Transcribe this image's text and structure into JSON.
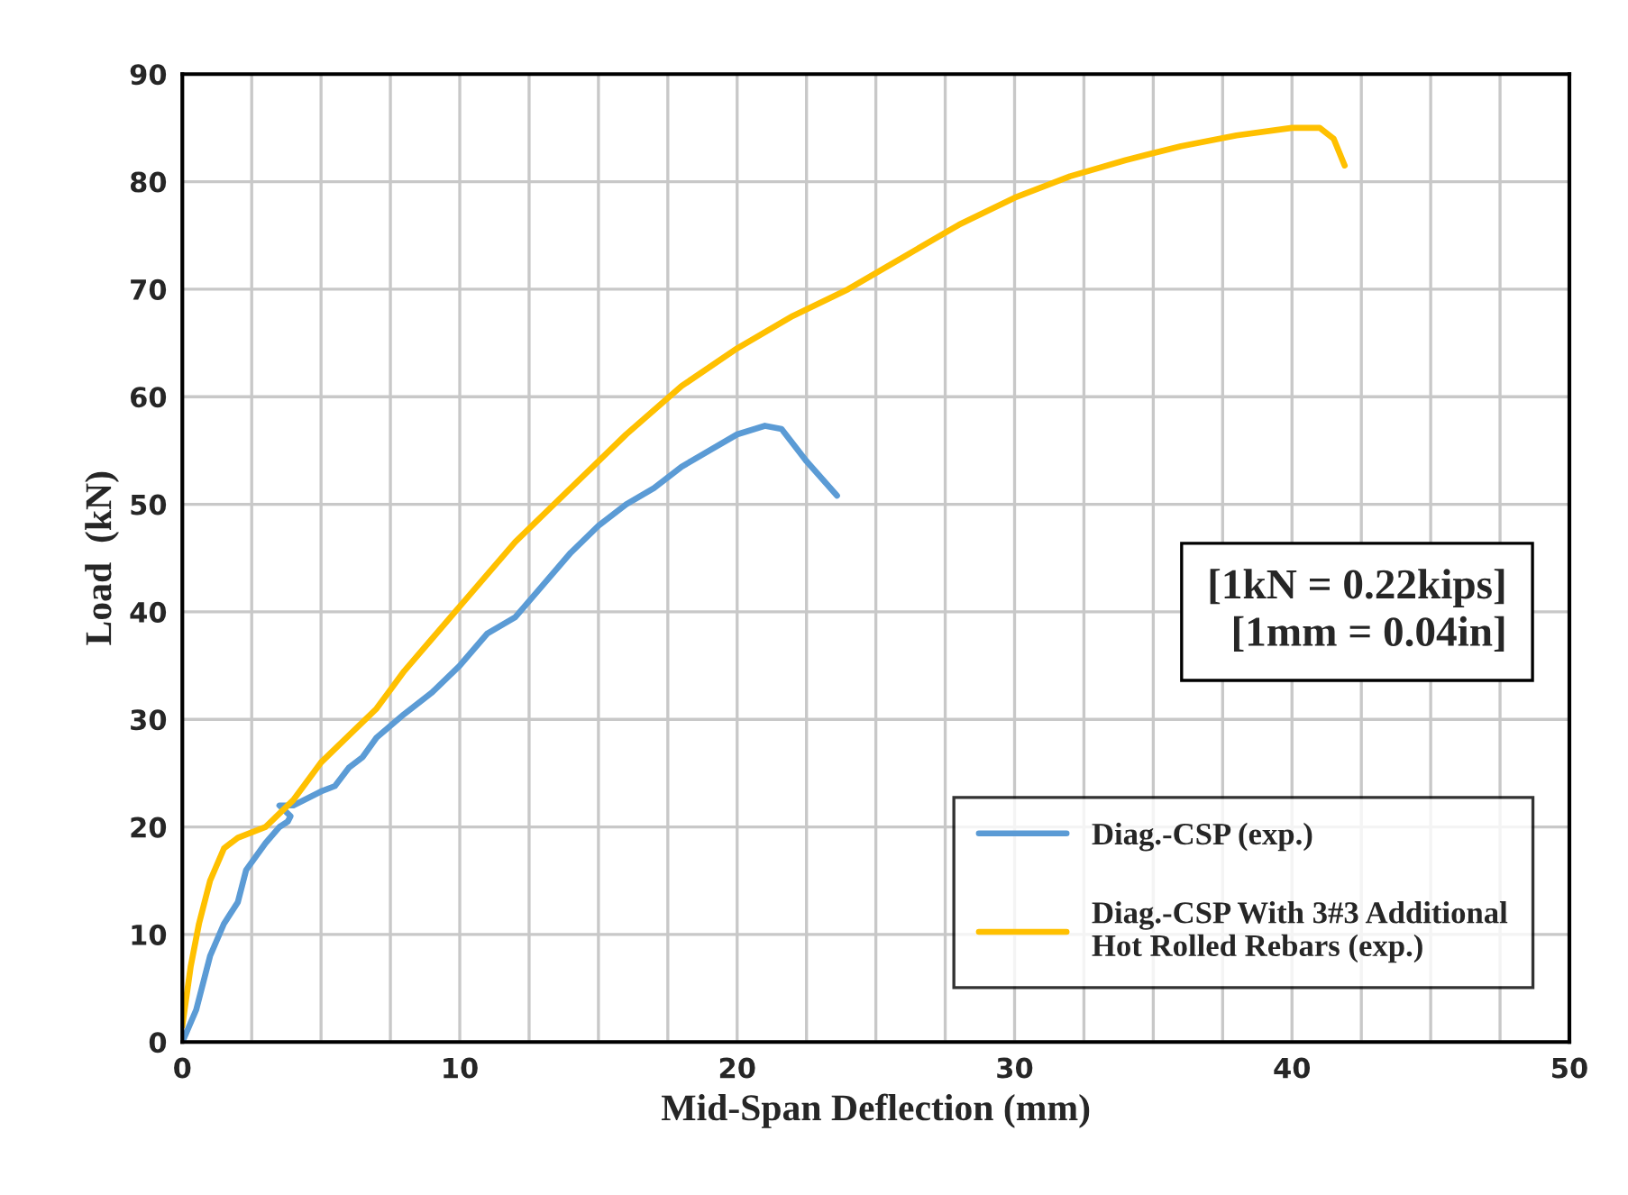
{
  "chart_data": {
    "type": "line",
    "xlabel": "Mid-Span Deflection (mm)",
    "ylabel": "Load  (kN)",
    "xlim": [
      0,
      50
    ],
    "ylim": [
      0,
      90
    ],
    "xticks": [
      0,
      {
        "value": 2.5,
        "label": null
      },
      {
        "value": 5,
        "label": null
      },
      {
        "value": 7.5,
        "label": null
      },
      10,
      {
        "value": 12.5,
        "label": null
      },
      {
        "value": 15,
        "label": null
      },
      {
        "value": 17.5,
        "label": null
      },
      20,
      {
        "value": 22.5,
        "label": null
      },
      {
        "value": 25,
        "label": null
      },
      {
        "value": 27.5,
        "label": null
      },
      30,
      {
        "value": 32.5,
        "label": null
      },
      {
        "value": 35,
        "label": null
      },
      {
        "value": 37.5,
        "label": null
      },
      40,
      {
        "value": 42.5,
        "label": null
      },
      {
        "value": 45,
        "label": null
      },
      {
        "value": 47.5,
        "label": null
      },
      50
    ],
    "yticks": [
      0,
      10,
      20,
      30,
      40,
      50,
      60,
      70,
      80,
      90
    ],
    "grid": true,
    "legend": "bottom right",
    "marker": "none",
    "line_style": "solid",
    "annotations": [
      "[1kN = 0.22kips]\n[1mm = 0.04in]"
    ],
    "series": [
      {
        "name": "Diag.-CSP (exp.)",
        "color": "#5b9bd5",
        "x": [
          0,
          0.5,
          1,
          1.5,
          2,
          2.3,
          3,
          3.5,
          3.8,
          3.9,
          3.5,
          4,
          5,
          5.5,
          6,
          6.5,
          7,
          8,
          9,
          10,
          11,
          12,
          13,
          14,
          15,
          16,
          17,
          18,
          19,
          20,
          21,
          21.6,
          22.5,
          23.6
        ],
        "values": [
          0,
          3,
          8,
          11,
          13,
          16,
          18.5,
          20,
          20.5,
          21,
          22,
          22,
          23.3,
          23.8,
          25.5,
          26.5,
          28.3,
          30.5,
          32.5,
          35,
          38,
          39.5,
          42.5,
          45.5,
          48,
          50,
          51.5,
          53.5,
          55,
          56.5,
          57.3,
          57,
          54,
          50.8
        ]
      },
      {
        "name": "Diag.-CSP With 3#3 Additional\nHot Rolled Rebars (exp.)",
        "color": "#ffc000",
        "x": [
          0,
          0.3,
          0.6,
          1,
          1.5,
          2,
          3,
          4,
          5,
          6,
          7,
          8,
          9,
          10,
          11,
          12,
          14,
          16,
          18,
          20,
          22,
          24,
          26,
          28,
          30,
          32,
          34,
          36,
          38,
          40,
          41,
          41.5,
          41.9
        ],
        "values": [
          1.5,
          7,
          11,
          15,
          18,
          19,
          20,
          22.5,
          26,
          28.5,
          31,
          34.5,
          37.5,
          40.5,
          43.5,
          46.5,
          51.5,
          56.5,
          61,
          64.5,
          67.5,
          70,
          73,
          76,
          78.5,
          80.5,
          82,
          83.3,
          84.3,
          85,
          85,
          84,
          81.5
        ]
      }
    ]
  }
}
